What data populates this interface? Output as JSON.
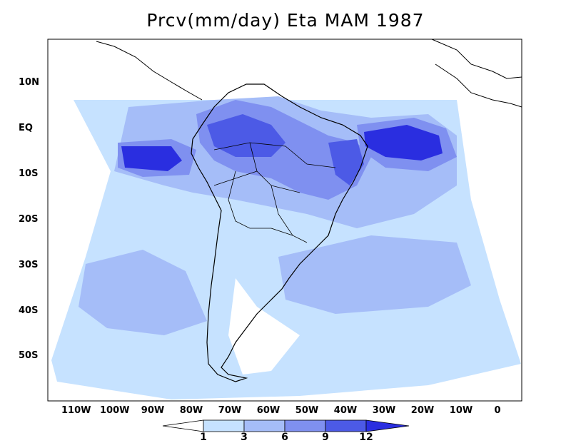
{
  "title": "Prcv(mm/day) Eta MAM 1987",
  "lat_labels": [
    "10N",
    "EQ",
    "10S",
    "20S",
    "30S",
    "40S",
    "50S"
  ],
  "lon_labels": [
    "110W",
    "100W",
    "90W",
    "80W",
    "70W",
    "60W",
    "50W",
    "40W",
    "30W",
    "20W",
    "10W",
    "0"
  ],
  "colorbar": {
    "labels": [
      "1",
      "3",
      "6",
      "9",
      "12"
    ],
    "colors": [
      "#ffffff",
      "#c6e2ff",
      "#a5bdf8",
      "#7f90f0",
      "#4c5ae6",
      "#2a2ee0"
    ]
  },
  "palette": {
    "c1": "#c6e2ff",
    "c2": "#a5bdf8",
    "c3": "#7f90f0",
    "c4": "#4c5ae6",
    "c5": "#2a2ee0"
  }
}
